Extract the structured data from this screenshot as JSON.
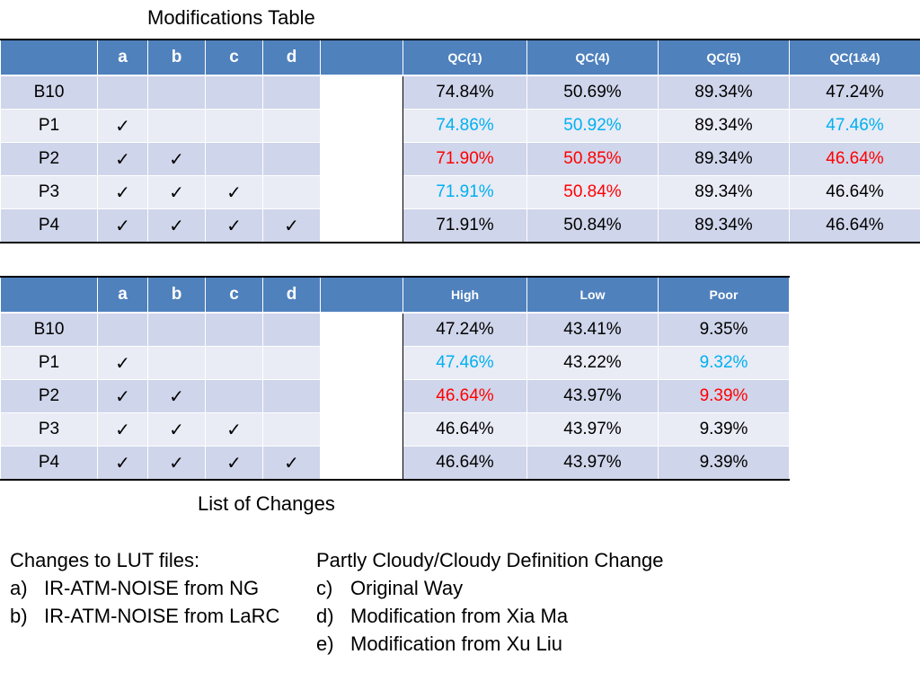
{
  "colors": {
    "header_bg": "#4f81bd",
    "row_dark": "#cfd5ea",
    "row_light": "#e9ebf5",
    "cyan": "#00b0f0",
    "red": "#ff0000",
    "black": "#000000"
  },
  "title": "Modifications Table",
  "table1": {
    "headers": [
      "",
      "a",
      "b",
      "c",
      "d",
      "",
      "QC(1)",
      "QC(4)",
      "QC(5)",
      "QC(1&4)"
    ],
    "rows": [
      {
        "label": "B10",
        "checks": [
          "",
          "",
          "",
          ""
        ],
        "values": [
          "74.84%",
          "50.69%",
          "89.34%",
          "47.24%"
        ],
        "colors": [
          "#000000",
          "#000000",
          "#000000",
          "#000000"
        ]
      },
      {
        "label": "P1",
        "checks": [
          "✓",
          "",
          "",
          ""
        ],
        "values": [
          "74.86%",
          "50.92%",
          "89.34%",
          "47.46%"
        ],
        "colors": [
          "#00b0f0",
          "#00b0f0",
          "#000000",
          "#00b0f0"
        ]
      },
      {
        "label": "P2",
        "checks": [
          "✓",
          "✓",
          "",
          ""
        ],
        "values": [
          "71.90%",
          "50.85%",
          "89.34%",
          "46.64%"
        ],
        "colors": [
          "#ff0000",
          "#ff0000",
          "#000000",
          "#ff0000"
        ]
      },
      {
        "label": "P3",
        "checks": [
          "✓",
          "✓",
          "✓",
          ""
        ],
        "values": [
          "71.91%",
          "50.84%",
          "89.34%",
          "46.64%"
        ],
        "colors": [
          "#00b0f0",
          "#ff0000",
          "#000000",
          "#000000"
        ]
      },
      {
        "label": "P4",
        "checks": [
          "✓",
          "✓",
          "✓",
          "✓"
        ],
        "values": [
          "71.91%",
          "50.84%",
          "89.34%",
          "46.64%"
        ],
        "colors": [
          "#000000",
          "#000000",
          "#000000",
          "#000000"
        ]
      }
    ]
  },
  "table2": {
    "headers": [
      "",
      "a",
      "b",
      "c",
      "d",
      "",
      "High",
      "Low",
      "Poor"
    ],
    "rows": [
      {
        "label": "B10",
        "checks": [
          "",
          "",
          "",
          ""
        ],
        "values": [
          "47.24%",
          "43.41%",
          "9.35%"
        ],
        "colors": [
          "#000000",
          "#000000",
          "#000000"
        ]
      },
      {
        "label": "P1",
        "checks": [
          "✓",
          "",
          "",
          ""
        ],
        "values": [
          "47.46%",
          "43.22%",
          "9.32%"
        ],
        "colors": [
          "#00b0f0",
          "#000000",
          "#00b0f0"
        ]
      },
      {
        "label": "P2",
        "checks": [
          "✓",
          "✓",
          "",
          ""
        ],
        "values": [
          "46.64%",
          "43.97%",
          "9.39%"
        ],
        "colors": [
          "#ff0000",
          "#000000",
          "#ff0000"
        ]
      },
      {
        "label": "P3",
        "checks": [
          "✓",
          "✓",
          "✓",
          ""
        ],
        "values": [
          "46.64%",
          "43.97%",
          "9.39%"
        ],
        "colors": [
          "#000000",
          "#000000",
          "#000000"
        ]
      },
      {
        "label": "P4",
        "checks": [
          "✓",
          "✓",
          "✓",
          "✓"
        ],
        "values": [
          "46.64%",
          "43.97%",
          "9.39%"
        ],
        "colors": [
          "#000000",
          "#000000",
          "#000000"
        ]
      }
    ]
  },
  "changes": {
    "title": "List of Changes",
    "lut": {
      "heading": "Changes to LUT files:",
      "items": [
        {
          "marker": "a)",
          "text": "IR-ATM-NOISE from NG"
        },
        {
          "marker": "b)",
          "text": "IR-ATM-NOISE from LaRC"
        }
      ]
    },
    "cloud": {
      "heading": "Partly Cloudy/Cloudy Definition Change",
      "items": [
        {
          "marker": "c)",
          "text": "Original Way"
        },
        {
          "marker": "d)",
          "text": "Modification from Xia Ma"
        },
        {
          "marker": "e)",
          "text": "Modification from Xu Liu"
        }
      ]
    }
  }
}
